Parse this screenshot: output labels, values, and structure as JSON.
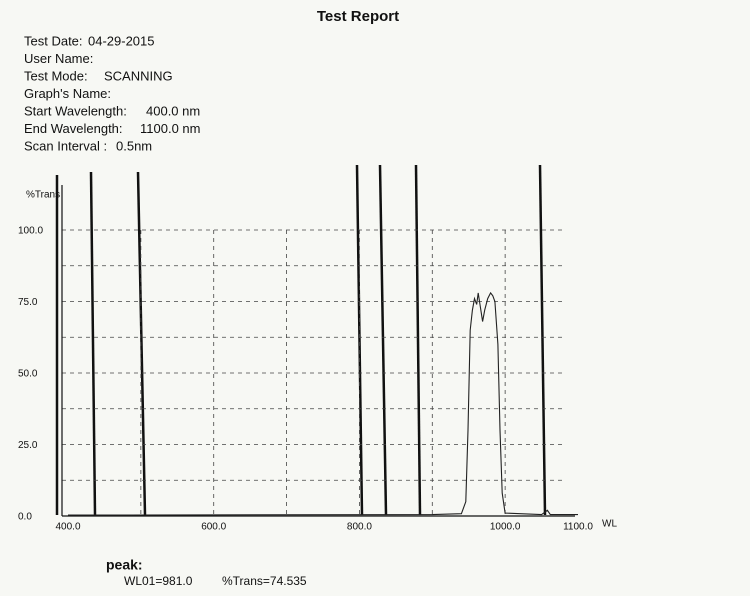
{
  "report": {
    "title": "Test Report",
    "fields": [
      {
        "label": "Test Date:",
        "value": "04-29-2015"
      },
      {
        "label": "User Name:",
        "value": null
      },
      {
        "label": "Test Mode:",
        "value": "SCANNING"
      },
      {
        "label": "Graph's Name:",
        "value": null
      },
      {
        "label": "Start Wavelength:",
        "value": "400.0  nm"
      },
      {
        "label": "End Wavelength:",
        "value": "1100.0  nm"
      },
      {
        "label": "Scan Interval :",
        "value": "0.5nm"
      }
    ],
    "peak_title": "peak:",
    "peak_wl": "WL01=981.0",
    "peak_trans": "%Trans=74.535"
  },
  "chart_data": {
    "type": "line",
    "ylabel": "%Trans",
    "xlabel": "WL",
    "xlim": [
      400,
      1100
    ],
    "ylim": [
      0,
      100
    ],
    "xticks": [
      {
        "value": 400,
        "label": "400.0"
      },
      {
        "value": 500,
        "label": null
      },
      {
        "value": 600,
        "label": "600.0"
      },
      {
        "value": 700,
        "label": null
      },
      {
        "value": 800,
        "label": "800.0"
      },
      {
        "value": 900,
        "label": null
      },
      {
        "value": 1000,
        "label": "1000.0"
      },
      {
        "value": 1100,
        "label": "1100.0"
      }
    ],
    "yticks": [
      {
        "value": 0,
        "label": "0.0"
      },
      {
        "value": 12.5,
        "label": null
      },
      {
        "value": 25,
        "label": "25.0"
      },
      {
        "value": 37.5,
        "label": null
      },
      {
        "value": 50,
        "label": "50.0"
      },
      {
        "value": 62.5,
        "label": null
      },
      {
        "value": 75,
        "label": "75.0"
      },
      {
        "value": 87.5,
        "label": null
      },
      {
        "value": 100,
        "label": "100.0"
      }
    ],
    "grid": true,
    "series": [
      {
        "name": "%Trans",
        "color": "#222222",
        "x": [
          400,
          900,
          940,
          946,
          949,
          952,
          955,
          958,
          961,
          963,
          966,
          969,
          972,
          976,
          980,
          983,
          986,
          990,
          993,
          996,
          1000,
          1050,
          1058,
          1062,
          1100
        ],
        "values": [
          0.3,
          0.5,
          0.8,
          5,
          30,
          65,
          72,
          76,
          74,
          78,
          73,
          68,
          72,
          76,
          78,
          77,
          75,
          60,
          30,
          8,
          1,
          0.5,
          2,
          0.5,
          0.5
        ]
      }
    ]
  }
}
